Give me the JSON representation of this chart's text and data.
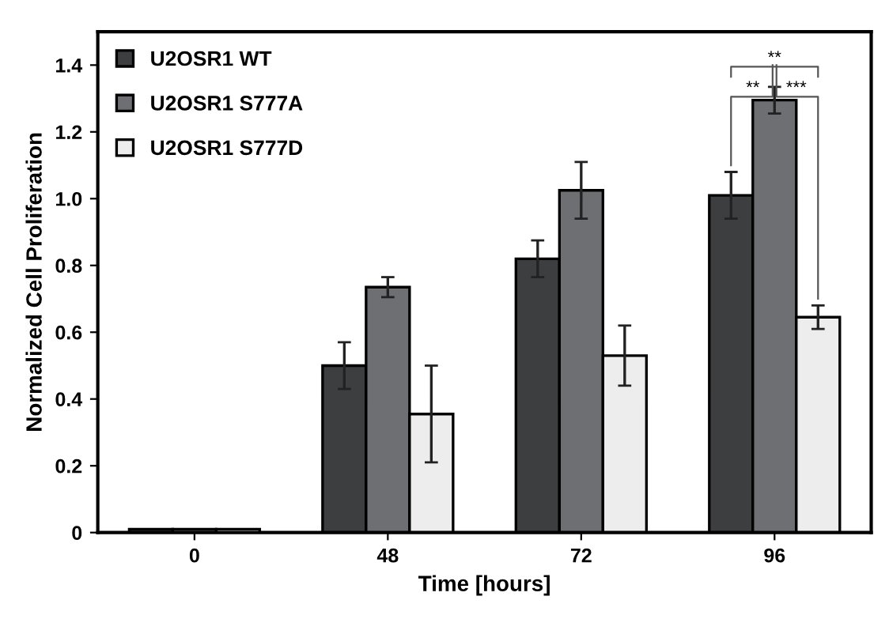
{
  "chart_data": {
    "type": "bar",
    "xlabel": "Time [hours]",
    "ylabel": "Normalized Cell Proliferation",
    "categories": [
      "0",
      "48",
      "72",
      "96"
    ],
    "series": [
      {
        "name": "U2OSR1 WT",
        "color": "#3d3e40",
        "values": [
          0.01,
          0.5,
          0.82,
          1.01
        ],
        "errors": [
          null,
          0.07,
          0.055,
          0.07
        ]
      },
      {
        "name": "U2OSR1 S777A",
        "color": "#6e6f73",
        "values": [
          0.01,
          0.735,
          1.025,
          1.295
        ],
        "errors": [
          null,
          0.03,
          0.085,
          0.04
        ]
      },
      {
        "name": "U2OSR1 S777D",
        "color": "#ededed",
        "values": [
          0.01,
          0.355,
          0.53,
          0.645
        ],
        "errors": [
          null,
          0.145,
          0.09,
          0.035
        ]
      }
    ],
    "ylim": [
      0,
      1.5
    ],
    "yticks": [
      0,
      {
        "value": 0.2,
        "label": "0.2"
      },
      {
        "value": 0.4,
        "label": "0.4"
      },
      {
        "value": 0.6,
        "label": "0.6"
      },
      {
        "value": 0.8,
        "label": "0.8"
      },
      {
        "value": 1.0,
        "label": "1.0"
      },
      {
        "value": 1.2,
        "label": "1.2"
      },
      {
        "value": 1.4,
        "label": "1.4"
      }
    ],
    "annotations": [
      "**",
      "***",
      "**"
    ],
    "legend": "top left",
    "grid": false
  }
}
